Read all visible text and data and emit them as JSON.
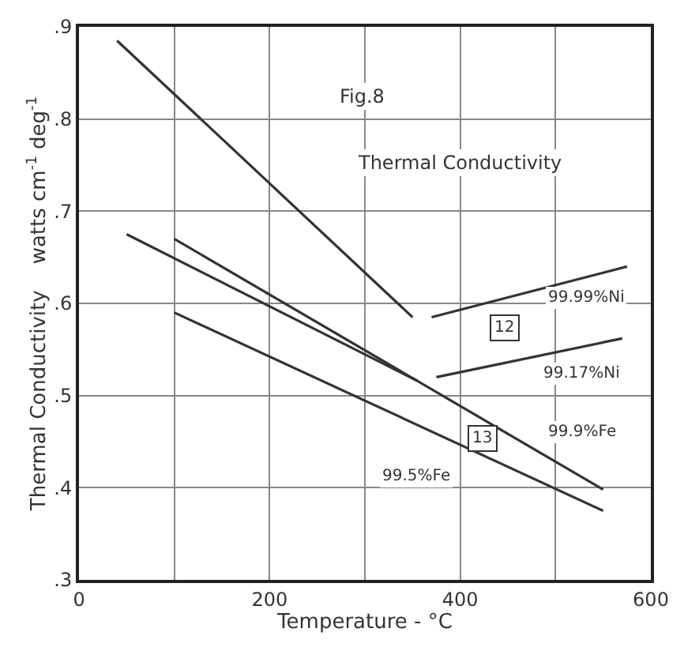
{
  "chart_data": {
    "type": "line",
    "xlabel": "Temperature - °C",
    "ylabel": "Thermal Conductivity    watts cm$^{-1}$ deg$^{-1}$",
    "annotations": [
      "Fig.8",
      "Thermal Conductivity",
      {
        "text": "12",
        "x": 447,
        "y": 0.573
      },
      {
        "text": "13",
        "x": 423,
        "y": 0.453
      }
    ],
    "series": [
      {
        "color": "#333333",
        "x": [
          40,
          350
        ],
        "values": [
          0.885,
          0.585
        ]
      },
      {
        "name": "99.99%Ni",
        "color": "#333333",
        "x": [
          370,
          575
        ],
        "values": [
          0.585,
          0.64
        ]
      },
      {
        "name": "99.17%Ni",
        "color": "#333333",
        "x": [
          375,
          570
        ],
        "values": [
          0.52,
          0.562
        ]
      },
      {
        "color": "#333333",
        "x": [
          50,
          355
        ],
        "values": [
          0.675,
          0.516
        ]
      },
      {
        "name": "99.9%Fe",
        "color": "#333333",
        "x": [
          100,
          550
        ],
        "values": [
          0.67,
          0.398
        ]
      },
      {
        "name": "99.5%Fe",
        "color": "#333333",
        "x": [
          100,
          550
        ],
        "values": [
          0.59,
          0.375
        ]
      }
    ],
    "xlim": [
      0,
      600
    ],
    "xticks": [
      0,
      {
        "value": 100,
        "label": null
      },
      200,
      {
        "value": 300,
        "label": null
      },
      400,
      {
        "value": 500,
        "label": null
      },
      600
    ],
    "ylim": [
      0.3,
      0.9
    ],
    "yticks": [
      {
        "value": 0.3,
        "label": ".3"
      },
      {
        "value": 0.4,
        "label": ".4"
      },
      {
        "value": 0.5,
        "label": ".5"
      },
      {
        "value": 0.6,
        "label": ".6"
      },
      {
        "value": 0.7,
        "label": ".7"
      },
      {
        "value": 0.8,
        "label": ".8"
      },
      {
        "value": 0.9,
        "label": ".9"
      }
    ],
    "grid": true,
    "legend": false,
    "marker": "none",
    "line_style": "solid"
  }
}
